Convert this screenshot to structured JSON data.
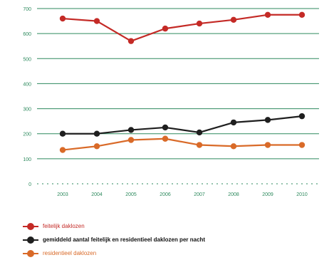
{
  "chart_data": {
    "type": "line",
    "categories": [
      "2003",
      "2004",
      "2005",
      "2006",
      "2007",
      "2008",
      "2009",
      "2010"
    ],
    "series": [
      {
        "name": "feitelijk daklozen",
        "color": "#c42a26",
        "values": [
          660,
          650,
          570,
          620,
          640,
          655,
          675,
          675
        ]
      },
      {
        "name": "gemiddeld aantal feitelijk en residentieel daklozen per nacht",
        "color": "#1f1f1f",
        "values": [
          200,
          200,
          215,
          225,
          205,
          245,
          255,
          270
        ]
      },
      {
        "name": "residentieel daklozen",
        "color": "#d96a28",
        "values": [
          135,
          150,
          175,
          180,
          155,
          150,
          155,
          155
        ]
      }
    ],
    "yticks": [
      0,
      100,
      200,
      300,
      400,
      500,
      600,
      700
    ],
    "ylim": [
      0,
      700
    ],
    "grid": true,
    "gridline_color": "#2e8a5e",
    "axis_text_color": "#2e8a5e",
    "legend_position": "bottom-left",
    "title": "",
    "xlabel": "",
    "ylabel": ""
  }
}
